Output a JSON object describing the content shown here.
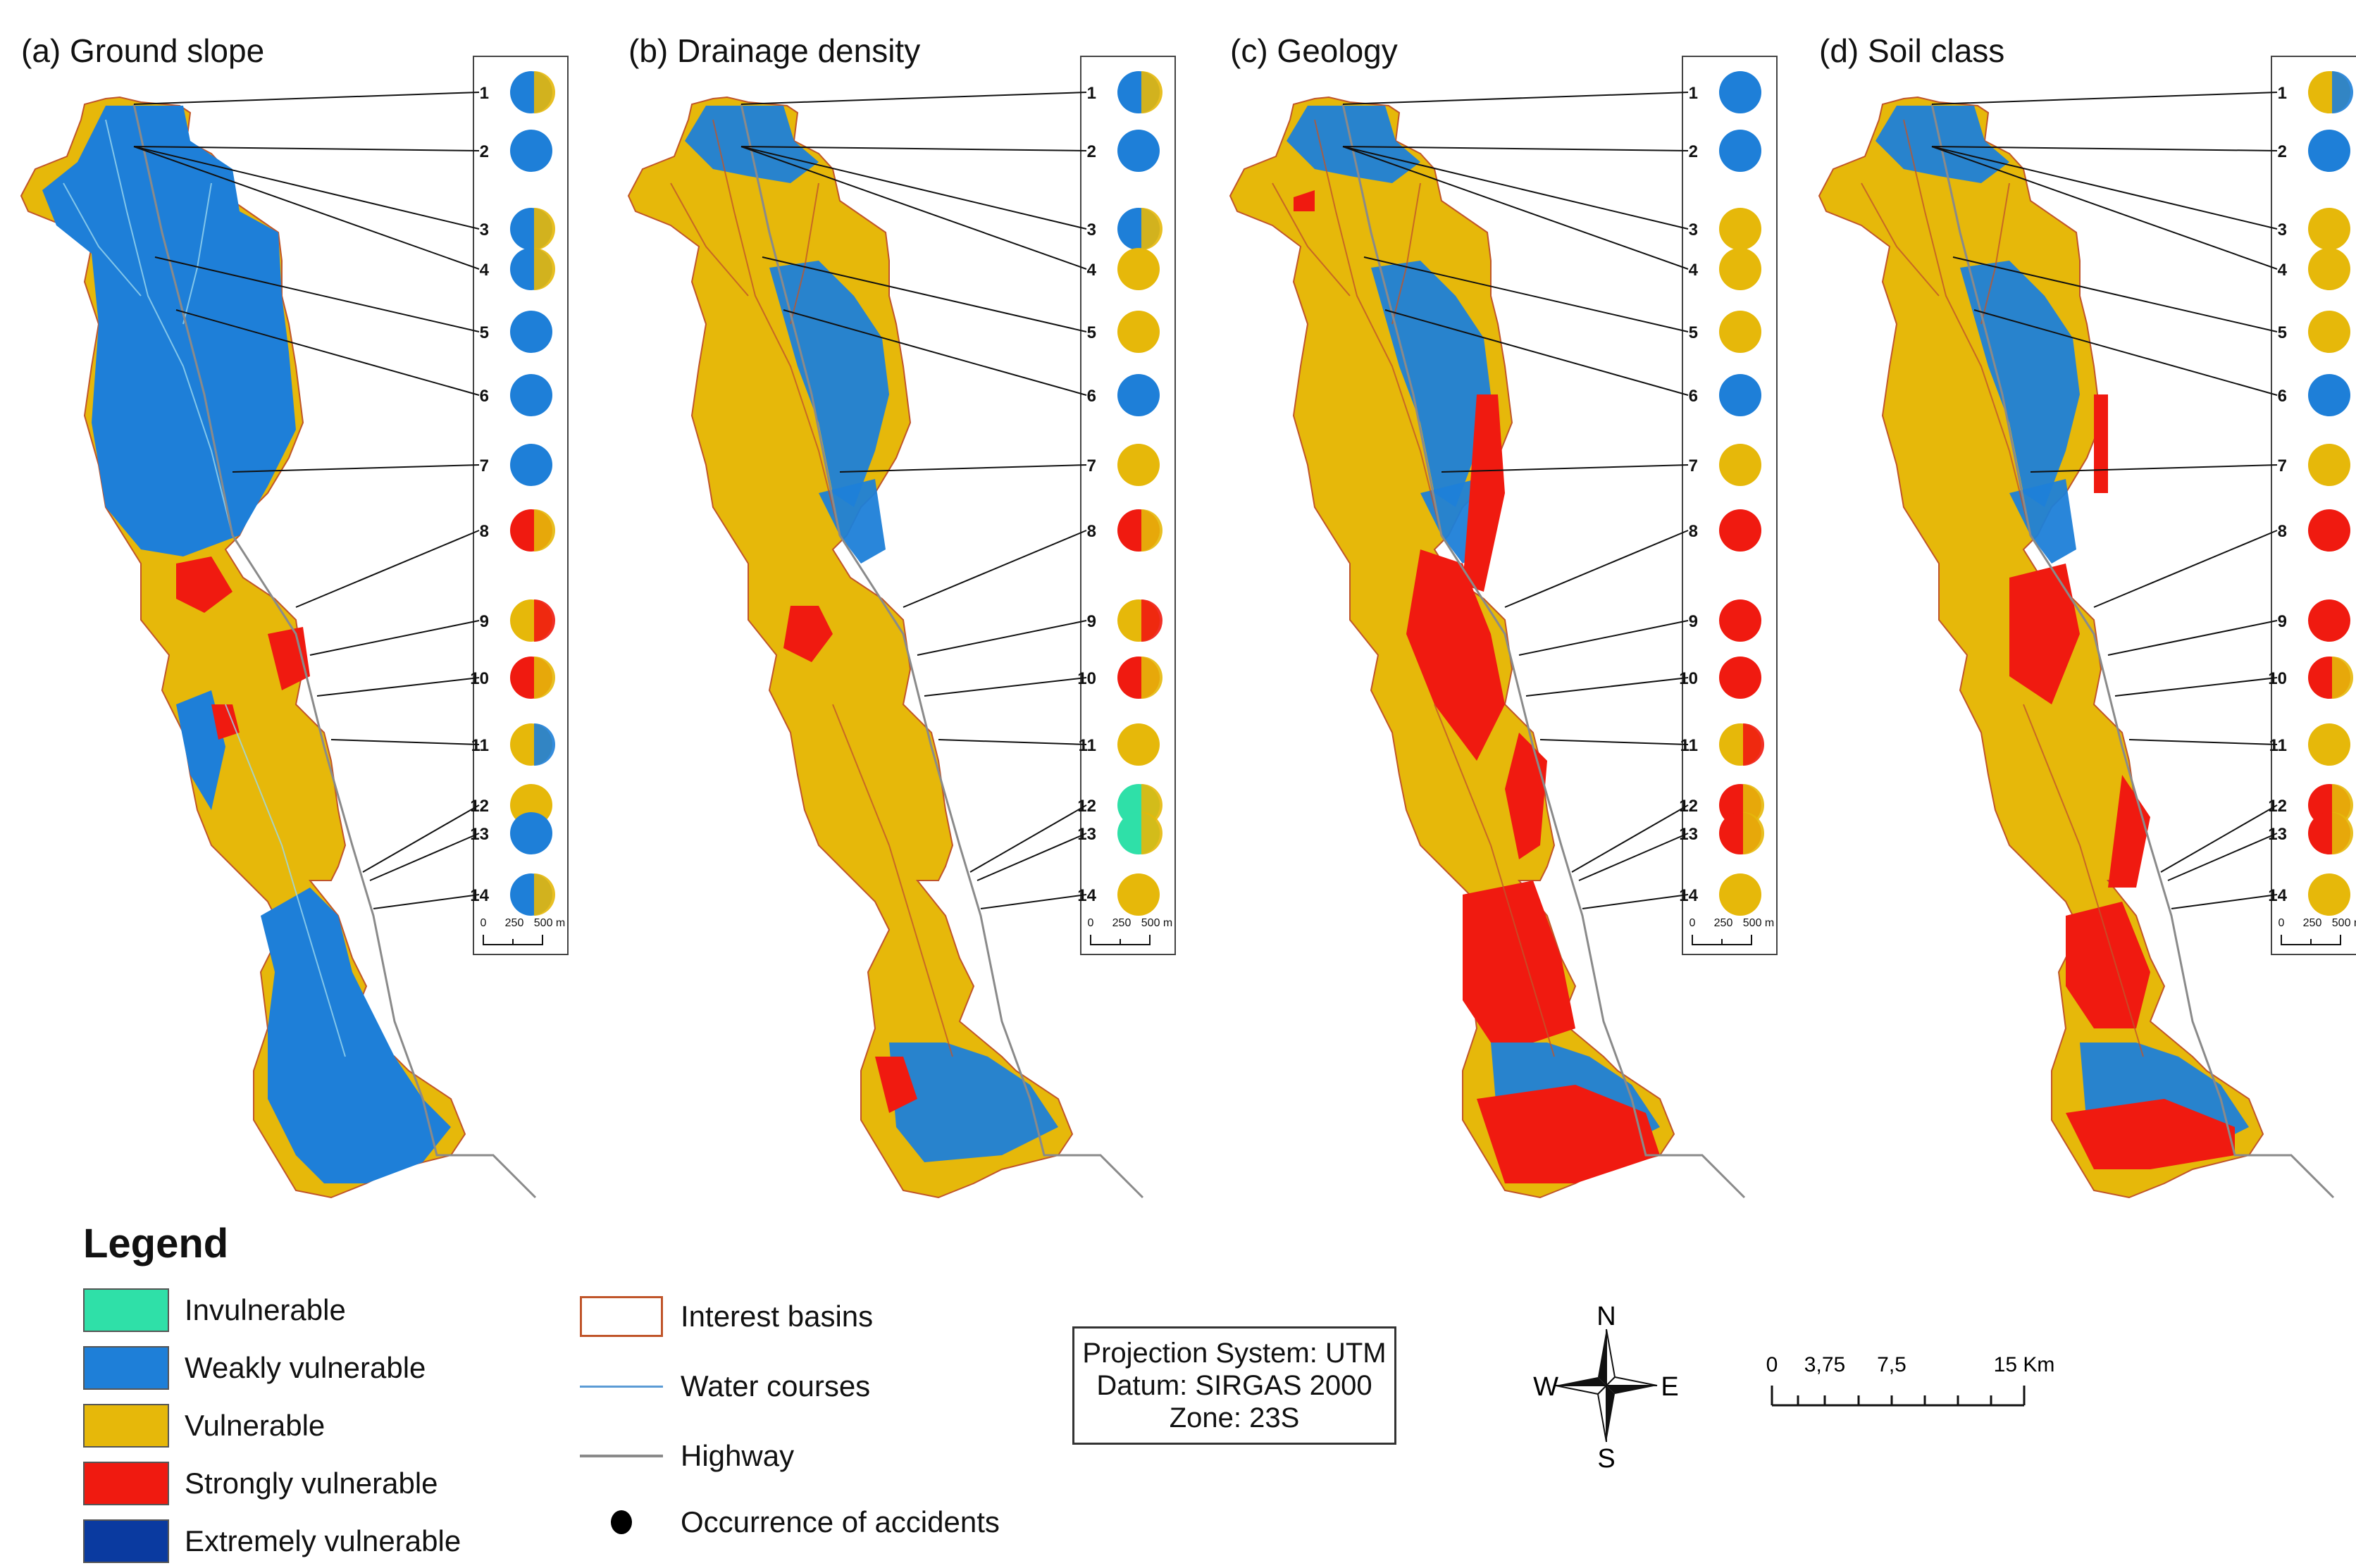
{
  "colors": {
    "invulnerable": "#2fe0a8",
    "weakly_vulnerable": "#1e7fd8",
    "vulnerable": "#e6b80a",
    "strongly_vulnerable": "#f01a10",
    "extremely_vulnerable": "#0a3aa0",
    "basin_outline": "#c0552a",
    "water": "#5b9bd5",
    "highway": "#8a8a8a"
  },
  "panels": [
    {
      "title": "(a) Ground slope",
      "circles": [
        "blue-yellow",
        "blue",
        "blue-yellow",
        "blue-yellow",
        "blue",
        "blue",
        "blue",
        "red-yellow",
        "yellow-red",
        "red-yellow",
        "yellow-blue",
        "mixed",
        "blue",
        "blue-yellow"
      ]
    },
    {
      "title": "(b) Drainage density",
      "circles": [
        "blue-yellow",
        "blue",
        "blue-yellow",
        "yellow",
        "yellow",
        "blue",
        "yellow",
        "red-yellow",
        "yellow-red",
        "red-yellow",
        "yellow",
        "green-yellow",
        "green-yellow",
        "yellow"
      ]
    },
    {
      "title": "(c) Geology",
      "circles": [
        "blue",
        "blue",
        "yellow",
        "yellow",
        "yellow",
        "blue",
        "yellow",
        "red",
        "red",
        "red",
        "yellow-red",
        "red-yellow",
        "red-yellow",
        "yellow"
      ]
    },
    {
      "title": "(d) Soil class",
      "circles": [
        "yellow-blue",
        "blue",
        "yellow",
        "yellow",
        "yellow",
        "blue",
        "yellow",
        "red",
        "red",
        "red-yellow",
        "yellow",
        "red-yellow",
        "red-yellow",
        "yellow"
      ]
    }
  ],
  "circle_numbers": [
    "1",
    "2",
    "3",
    "4",
    "5",
    "6",
    "7",
    "8",
    "9",
    "10",
    "11",
    "12",
    "13",
    "14"
  ],
  "inset_scale": {
    "t0": "0",
    "t1": "250",
    "t2": "500 m"
  },
  "legend": {
    "title": "Legend",
    "classes": [
      {
        "label": "Invulnerable",
        "color": "#2fe0a8"
      },
      {
        "label": "Weakly vulnerable",
        "color": "#1e7fd8"
      },
      {
        "label": "Vulnerable",
        "color": "#e6b80a"
      },
      {
        "label": "Strongly vulnerable",
        "color": "#f01a10"
      },
      {
        "label": "Extremely vulnerable",
        "color": "#0a3aa0"
      }
    ],
    "symbols": [
      {
        "label": "Interest basins",
        "icon": "basin-outline-icon"
      },
      {
        "label": "Water courses",
        "icon": "water-line-icon"
      },
      {
        "label": "Highway",
        "icon": "highway-line-icon"
      },
      {
        "label": "Occurrence of accidents",
        "icon": "accident-dot-icon"
      }
    ]
  },
  "projection": {
    "line1": "Projection System: UTM",
    "line2": "Datum: SIRGAS 2000",
    "line3": "Zone: 23S"
  },
  "compass": {
    "n": "N",
    "s": "S",
    "e": "E",
    "w": "W"
  },
  "scale": {
    "t0": "0",
    "t1": "3,75",
    "t2": "7,5",
    "t3": "15 Km"
  }
}
